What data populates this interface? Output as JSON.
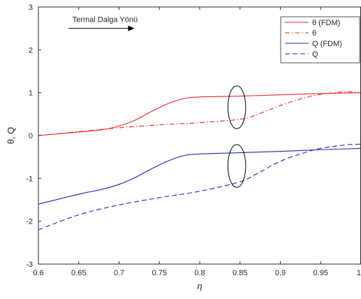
{
  "chart_data": {
    "type": "line",
    "title": "",
    "xlabel": "η",
    "ylabel": "θ, Q",
    "xlim": [
      0.6,
      1.0
    ],
    "ylim": [
      -3,
      3
    ],
    "xticks": [
      0.6,
      0.65,
      0.7,
      0.75,
      0.8,
      0.85,
      0.9,
      0.95,
      1
    ],
    "xtick_labels": [
      "0.6",
      "0.65",
      "0.7",
      "0.75",
      "0.8",
      "0.85",
      "0.9",
      "0.95",
      "1"
    ],
    "yticks": [
      -3,
      -2,
      -1,
      0,
      1,
      2,
      3
    ],
    "ytick_labels": [
      "-3",
      "-2",
      "-1",
      "0",
      "1",
      "2",
      "3"
    ],
    "grid": false,
    "legend_position": "top-right",
    "series": [
      {
        "name": "θ (FDM)",
        "color": "#e8282a",
        "dash": "solid",
        "x": [
          0.6,
          0.65,
          0.68,
          0.7,
          0.72,
          0.74,
          0.76,
          0.78,
          0.8,
          0.85,
          0.9,
          0.95,
          1.0
        ],
        "y": [
          0.0,
          0.08,
          0.14,
          0.22,
          0.36,
          0.56,
          0.74,
          0.86,
          0.9,
          0.92,
          0.95,
          0.98,
          1.0
        ]
      },
      {
        "name": "θ",
        "color": "#e8282a",
        "dash": "dashdot",
        "x": [
          0.6,
          0.65,
          0.7,
          0.75,
          0.8,
          0.85,
          0.87,
          0.9,
          0.93,
          0.95,
          0.98,
          1.0
        ],
        "y": [
          0.0,
          0.09,
          0.18,
          0.25,
          0.3,
          0.38,
          0.48,
          0.7,
          0.88,
          0.96,
          1.02,
          1.0
        ]
      },
      {
        "name": "Q (FDM)",
        "color": "#2323b8",
        "dash": "solid",
        "x": [
          0.6,
          0.65,
          0.68,
          0.7,
          0.72,
          0.74,
          0.76,
          0.78,
          0.8,
          0.85,
          0.9,
          0.95,
          1.0
        ],
        "y": [
          -1.6,
          -1.37,
          -1.25,
          -1.14,
          -0.98,
          -0.78,
          -0.6,
          -0.47,
          -0.43,
          -0.4,
          -0.37,
          -0.33,
          -0.3
        ]
      },
      {
        "name": "Q",
        "color": "#2323b8",
        "dash": "dashed",
        "x": [
          0.6,
          0.65,
          0.7,
          0.75,
          0.8,
          0.85,
          0.87,
          0.9,
          0.93,
          0.95,
          0.98,
          1.0
        ],
        "y": [
          -2.2,
          -1.85,
          -1.62,
          -1.45,
          -1.3,
          -1.08,
          -0.9,
          -0.6,
          -0.4,
          -0.3,
          -0.22,
          -0.2
        ]
      }
    ],
    "annotations": [
      {
        "text": "Termal Dalga Yönü",
        "type": "arrow",
        "arrow_from": [
          0.637,
          2.5
        ],
        "arrow_to": [
          0.719,
          2.5
        ]
      },
      {
        "type": "ellipse",
        "center": [
          0.846,
          0.66
        ],
        "rx": 0.011,
        "ry": 0.5,
        "color": "#000000"
      },
      {
        "type": "ellipse",
        "center": [
          0.846,
          -0.71
        ],
        "rx": 0.011,
        "ry": 0.5,
        "color": "#000000"
      }
    ]
  }
}
